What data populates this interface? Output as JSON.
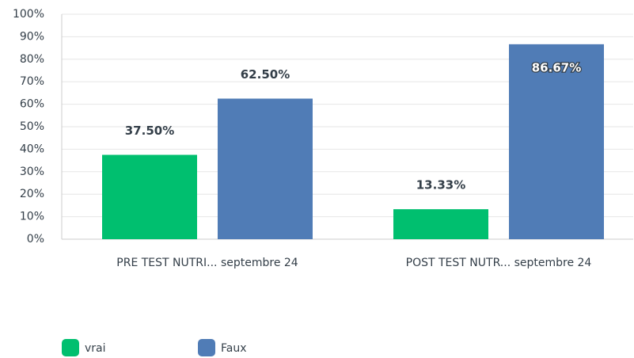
{
  "chart_data": {
    "type": "bar",
    "categories": [
      "PRE TEST NUTRI... septembre 24",
      "POST TEST NUTR... septembre 24"
    ],
    "series": [
      {
        "name": "vrai",
        "color": "#00bf6f",
        "values": [
          37.5,
          13.33
        ],
        "value_labels": [
          "37.50%",
          "13.33%"
        ]
      },
      {
        "name": "Faux",
        "color": "#507cb6",
        "values": [
          62.5,
          86.67
        ],
        "value_labels": [
          "62.50%",
          "86.67%"
        ]
      }
    ],
    "ylim": [
      0,
      100
    ],
    "yticks": [
      {
        "value": 0,
        "label": "0%"
      },
      {
        "value": 10,
        "label": "10%"
      },
      {
        "value": 20,
        "label": "20%"
      },
      {
        "value": 30,
        "label": "30%"
      },
      {
        "value": 40,
        "label": "40%"
      },
      {
        "value": 50,
        "label": "50%"
      },
      {
        "value": 60,
        "label": "60%"
      },
      {
        "value": 70,
        "label": "70%"
      },
      {
        "value": 80,
        "label": "80%"
      },
      {
        "value": 90,
        "label": "90%"
      },
      {
        "value": 100,
        "label": "100%"
      }
    ],
    "grid": true,
    "legend": "bottom-left"
  }
}
